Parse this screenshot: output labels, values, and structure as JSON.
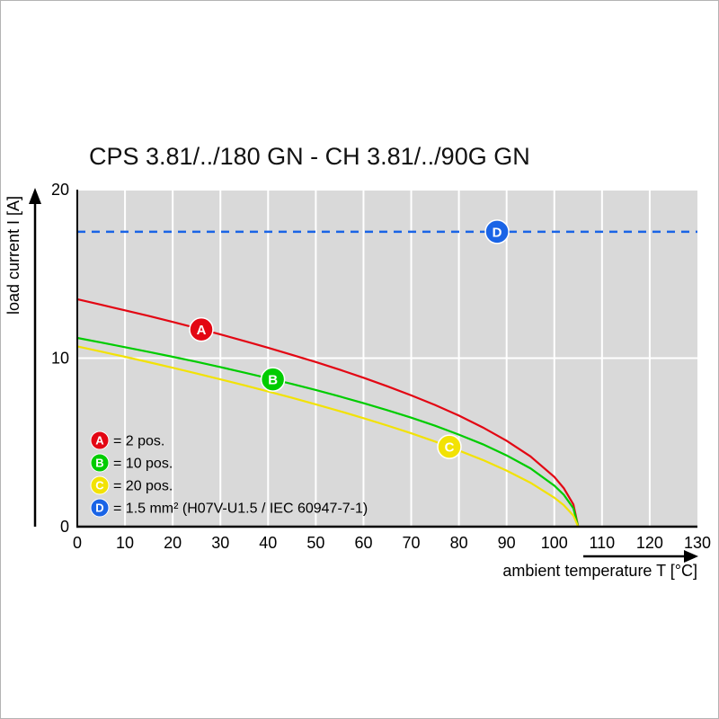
{
  "title": "CPS 3.81/../180 GN - CH 3.81/../90G GN",
  "chart_data": {
    "type": "line",
    "title": "CPS 3.81/../180 GN - CH 3.81/../90G GN",
    "xlabel": "ambient temperature T [°C]",
    "ylabel": "load current I [A]",
    "xlim": [
      0,
      130
    ],
    "ylim": [
      0,
      20
    ],
    "xticks": [
      0,
      10,
      20,
      30,
      40,
      50,
      60,
      70,
      80,
      90,
      100,
      110,
      120,
      130
    ],
    "yticks": [
      0,
      10,
      20
    ],
    "grid": true,
    "plot_background": "#d9d9d9",
    "gridline_color": "#ffffff",
    "legend_position": "bottom-left-inside",
    "reference_line": {
      "key": "D",
      "y": 17.5,
      "color": "#1a64e6",
      "style": "dashed",
      "marker_x": 88
    },
    "series": [
      {
        "key": "A",
        "label": "= 2 pos.",
        "color": "#e30613",
        "marker": {
          "x": 26,
          "y": 11.7
        },
        "points": [
          [
            0,
            13.5
          ],
          [
            5,
            13.17
          ],
          [
            10,
            12.84
          ],
          [
            15,
            12.5
          ],
          [
            20,
            12.15
          ],
          [
            25,
            11.78
          ],
          [
            30,
            11.41
          ],
          [
            35,
            11.02
          ],
          [
            40,
            10.62
          ],
          [
            45,
            10.2
          ],
          [
            50,
            9.77
          ],
          [
            55,
            9.32
          ],
          [
            60,
            8.84
          ],
          [
            65,
            8.33
          ],
          [
            70,
            7.79
          ],
          [
            75,
            7.22
          ],
          [
            80,
            6.59
          ],
          [
            85,
            5.89
          ],
          [
            90,
            5.1
          ],
          [
            95,
            4.17
          ],
          [
            100,
            2.95
          ],
          [
            102,
            2.28
          ],
          [
            104,
            1.32
          ],
          [
            105,
            0
          ]
        ]
      },
      {
        "key": "B",
        "label": "= 10 pos.",
        "color": "#00cc00",
        "marker": {
          "x": 41,
          "y": 8.74
        },
        "points": [
          [
            0,
            11.2
          ],
          [
            5,
            10.93
          ],
          [
            10,
            10.65
          ],
          [
            15,
            10.37
          ],
          [
            20,
            10.08
          ],
          [
            25,
            9.78
          ],
          [
            30,
            9.47
          ],
          [
            35,
            9.14
          ],
          [
            40,
            8.81
          ],
          [
            45,
            8.47
          ],
          [
            50,
            8.11
          ],
          [
            55,
            7.73
          ],
          [
            60,
            7.33
          ],
          [
            65,
            6.91
          ],
          [
            70,
            6.47
          ],
          [
            75,
            5.99
          ],
          [
            80,
            5.46
          ],
          [
            85,
            4.89
          ],
          [
            90,
            4.23
          ],
          [
            95,
            3.46
          ],
          [
            100,
            2.44
          ],
          [
            102,
            1.89
          ],
          [
            104,
            1.09
          ],
          [
            105,
            0
          ]
        ]
      },
      {
        "key": "C",
        "label": "= 20 pos.",
        "color": "#f2e205",
        "marker": {
          "x": 78,
          "y": 4.74
        },
        "points": [
          [
            0,
            10.7
          ],
          [
            5,
            10.39
          ],
          [
            10,
            10.08
          ],
          [
            15,
            9.76
          ],
          [
            20,
            9.43
          ],
          [
            25,
            9.09
          ],
          [
            30,
            8.74
          ],
          [
            35,
            8.39
          ],
          [
            40,
            8.02
          ],
          [
            45,
            7.65
          ],
          [
            50,
            7.26
          ],
          [
            55,
            6.86
          ],
          [
            60,
            6.44
          ],
          [
            65,
            6.0
          ],
          [
            70,
            5.54
          ],
          [
            75,
            5.05
          ],
          [
            80,
            4.52
          ],
          [
            85,
            3.96
          ],
          [
            90,
            3.33
          ],
          [
            95,
            2.61
          ],
          [
            100,
            1.72
          ],
          [
            102,
            1.27
          ],
          [
            104,
            0.66
          ],
          [
            105,
            0
          ]
        ]
      }
    ],
    "legend": [
      {
        "key": "A",
        "label": "= 2 pos.",
        "color": "#e30613"
      },
      {
        "key": "B",
        "label": "= 10 pos.",
        "color": "#00cc00"
      },
      {
        "key": "C",
        "label": "= 20 pos.",
        "color": "#f2e205"
      },
      {
        "key": "D",
        "label": "= 1.5 mm² (H07V-U1.5 / IEC 60947-7-1)",
        "color": "#1a64e6"
      }
    ]
  }
}
